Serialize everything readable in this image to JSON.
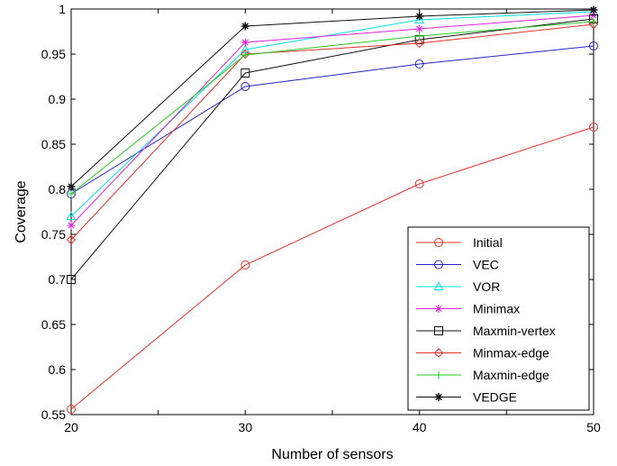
{
  "chart_data": {
    "type": "line",
    "title": "",
    "xlabel": "Number of sensors",
    "ylabel": "Coverage",
    "x": [
      20,
      30,
      40,
      50
    ],
    "xlim": [
      20,
      50
    ],
    "ylim": [
      0.55,
      1.0
    ],
    "xticks": [
      "20",
      "30",
      "40",
      "50"
    ],
    "yticks": [
      "0.55",
      "0.6",
      "0.65",
      "0.7",
      "0.75",
      "0.8",
      "0.85",
      "0.9",
      "0.95",
      "1"
    ],
    "grid": false,
    "legend_position": "bottom-right",
    "series": [
      {
        "name": "Initial",
        "values": [
          0.556,
          0.716,
          0.806,
          0.869
        ],
        "color": "#e8302a",
        "marker": "circle"
      },
      {
        "name": "VEC",
        "values": [
          0.795,
          0.914,
          0.939,
          0.959
        ],
        "color": "#2424c8",
        "marker": "circle"
      },
      {
        "name": "VOR",
        "values": [
          0.77,
          0.955,
          0.988,
          0.997
        ],
        "color": "#00e0e0",
        "marker": "triangle"
      },
      {
        "name": "Minimax",
        "values": [
          0.76,
          0.963,
          0.978,
          0.993
        ],
        "color": "#e020e0",
        "marker": "star"
      },
      {
        "name": "Maxmin-vertex",
        "values": [
          0.7,
          0.929,
          0.966,
          0.989
        ],
        "color": "#111111",
        "marker": "square"
      },
      {
        "name": "Minmax-edge",
        "values": [
          0.744,
          0.95,
          0.962,
          0.983
        ],
        "color": "#e8302a",
        "marker": "diamond"
      },
      {
        "name": "Maxmin-edge",
        "values": [
          0.795,
          0.949,
          0.97,
          0.986
        ],
        "color": "#22cc22",
        "marker": "plus"
      },
      {
        "name": "VEDGE",
        "values": [
          0.803,
          0.981,
          0.992,
          0.999
        ],
        "color": "#111111",
        "marker": "asterisk"
      }
    ]
  }
}
